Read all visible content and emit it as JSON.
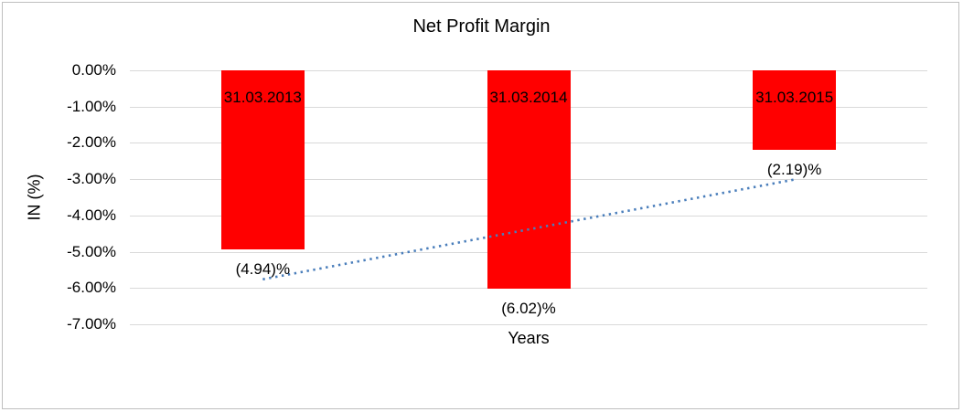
{
  "chart": {
    "title": "Net Profit Margin",
    "x_axis_title": "Years",
    "y_axis_title": "IN (%)"
  },
  "chart_data": {
    "type": "bar",
    "title": "Net Profit Margin",
    "xlabel": "Years",
    "ylabel": "IN (%)",
    "categories": [
      "31.03.2013",
      "31.03.2014",
      "31.03.2015"
    ],
    "values": [
      -4.94,
      -6.02,
      -2.19
    ],
    "value_labels": [
      "(4.94)%",
      "(6.02)%",
      "(2.19)%"
    ],
    "y_tick_labels": [
      "0.00%",
      "-1.00%",
      "-2.00%",
      "-3.00%",
      "-4.00%",
      "-5.00%",
      "-6.00%",
      "-7.00%"
    ],
    "ylim": [
      -7,
      0
    ],
    "grid": true,
    "legend": "none",
    "bar_color": "#ff0000",
    "gridline_color": "#d9d9d9",
    "text_color": "#000000",
    "trendline": {
      "type": "linear",
      "style": "dotted",
      "color": "#4a7ebb",
      "endpoint_values": [
        -5.76,
        -3.01
      ]
    }
  }
}
